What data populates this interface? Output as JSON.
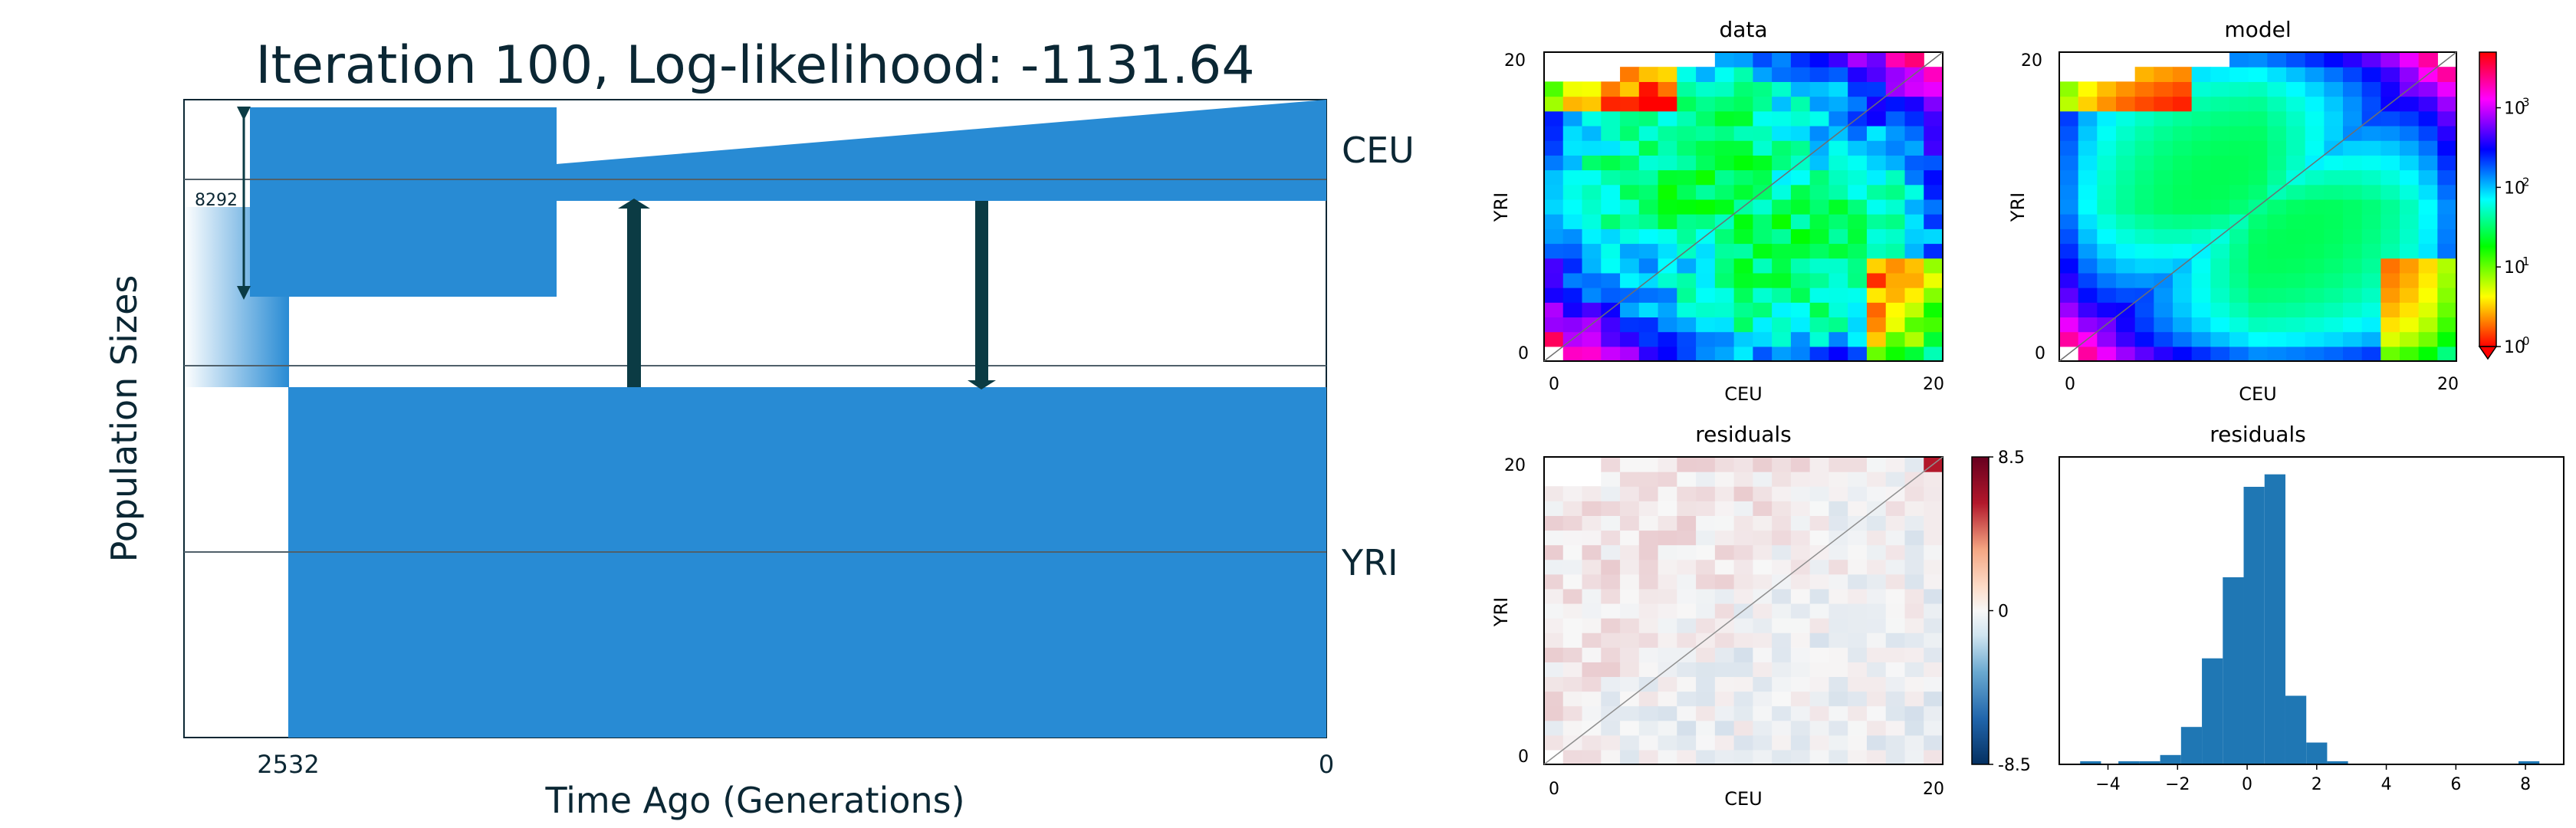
{
  "chart_data": [
    {
      "type": "area",
      "chart_kind": "demographic-model",
      "title": "Iteration 100, Log-likelihood: -1131.64",
      "xlabel": "Time Ago (Generations)",
      "ylabel": "Population Sizes",
      "x_ticks": [
        "2532",
        "0"
      ],
      "xlim": [
        2532,
        0
      ],
      "populations": [
        {
          "name": "CEU",
          "color": "#288bd4"
        },
        {
          "name": "YRI",
          "color": "#288bd4"
        }
      ],
      "split_time": 2532,
      "size_annotation": "8292",
      "migration_arrows": [
        {
          "direction": "YRI to CEU",
          "relative_time": 0.68
        },
        {
          "direction": "CEU to YRI",
          "relative_time": 0.3
        }
      ],
      "colors": {
        "population": "#288bd4",
        "arrow": "#0b3b44",
        "text": "#0b2734",
        "grid": "#50606a"
      }
    },
    {
      "type": "heatmap",
      "title": "data",
      "xlabel": "CEU",
      "ylabel": "YRI",
      "x_ticks": [
        "0",
        "20"
      ],
      "y_ticks": [
        "0",
        "20"
      ],
      "size": 21,
      "scale": "log",
      "range": [
        1,
        5000
      ]
    },
    {
      "type": "heatmap",
      "title": "model",
      "xlabel": "CEU",
      "ylabel": "YRI",
      "x_ticks": [
        "0",
        "20"
      ],
      "y_ticks": [
        "0",
        "20"
      ],
      "size": 21,
      "scale": "log",
      "range": [
        1,
        5000
      ],
      "colorbar_ticks": [
        "10",
        "10",
        "10",
        "10"
      ],
      "colorbar_exponents": [
        "3",
        "2",
        "1",
        "0"
      ],
      "colorbar_values": [
        1000,
        100,
        10,
        1
      ]
    },
    {
      "type": "heatmap",
      "title": "residuals",
      "xlabel": "CEU",
      "ylabel": "YRI",
      "x_ticks": [
        "0",
        "20"
      ],
      "y_ticks": [
        "0",
        "20"
      ],
      "size": 21,
      "range": [
        -8.5,
        8.5
      ],
      "colorbar_ticks": [
        "8.5",
        "0",
        "-8.5"
      ],
      "colorbar_values": [
        8.5,
        0,
        -8.5
      ]
    },
    {
      "type": "bar",
      "subtype": "histogram",
      "title": "residuals",
      "x_ticks": [
        "−4",
        "−2",
        "0",
        "2",
        "4",
        "6",
        "8"
      ],
      "x_tick_values": [
        -4,
        -2,
        0,
        2,
        4,
        6,
        8
      ],
      "xlim": [
        -5.4,
        9.1
      ],
      "bins": [
        {
          "x0": -4.8,
          "x1": -4.2,
          "count": 1
        },
        {
          "x0": -3.7,
          "x1": -3.1,
          "count": 1
        },
        {
          "x0": -3.1,
          "x1": -2.5,
          "count": 1
        },
        {
          "x0": -2.5,
          "x1": -1.9,
          "count": 3
        },
        {
          "x0": -1.9,
          "x1": -1.3,
          "count": 12
        },
        {
          "x0": -1.3,
          "x1": -0.7,
          "count": 34
        },
        {
          "x0": -0.7,
          "x1": -0.1,
          "count": 60
        },
        {
          "x0": -0.1,
          "x1": 0.5,
          "count": 89
        },
        {
          "x0": 0.5,
          "x1": 1.1,
          "count": 93
        },
        {
          "x0": 1.1,
          "x1": 1.7,
          "count": 22
        },
        {
          "x0": 1.7,
          "x1": 2.3,
          "count": 7
        },
        {
          "x0": 2.3,
          "x1": 2.9,
          "count": 1
        },
        {
          "x0": 7.8,
          "x1": 8.4,
          "count": 1
        }
      ],
      "color": "#1f77b4"
    }
  ]
}
